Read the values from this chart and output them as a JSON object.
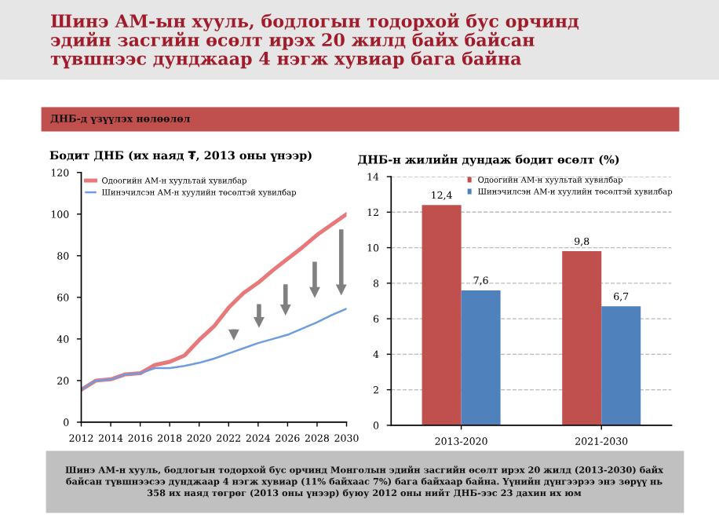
{
  "chart_data": [
    {
      "type": "line",
      "title": "Бодит ДНБ (их наяд ₮, 2013 оны үнээр)",
      "annotations": [
        "Шинэ АМ-ын хууль, бодлогын тодорхой бус орчинд\nэдийн засгийн өсөлт ирэх 20 жилд байх байсан\nтүвшнээс дунджаар 4 нэгж хувиар бага байна",
        "ДНБ-д үзүүлэх нөлөөлөл",
        "Шинэ АМ-н хууль, бодлогын тодорхой бус орчинд Монголын эдийн засгийн өсөлт ирэх 20 жилд (2013-2030) байх\nбайсан түвшнээсээ дунджаар 4 нэгж хувиар (11% байхаас 7%) бага байхаар байна. Үүнийн дүнгээрээ энэ зөрүү нь\n358 их наяд төгрөг (2013 оны үнээр) буюу 2012 оны нийт ДНБ-ээс 23 дахин их юм"
      ],
      "x": [
        2012,
        2013,
        2014,
        2015,
        2016,
        2017,
        2018,
        2019,
        2020,
        2021,
        2022,
        2023,
        2024,
        2025,
        2026,
        2027,
        2028,
        2029,
        2030
      ],
      "series": [
        {
          "name": "Одоогийн АМ-н хуультай хувилбар",
          "color": "#e8787a",
          "values": [
            15.6,
            20,
            20.6,
            23,
            23.5,
            27.5,
            29,
            32,
            39.5,
            46,
            55,
            62,
            67,
            73,
            78.5,
            84,
            90,
            95,
            100
          ]
        },
        {
          "name": "Шинэчилсэн АМ-н хуулийн төсөлтэй хувилбар",
          "color": "#6f9be0",
          "values": [
            15.6,
            20,
            20.5,
            23,
            23.5,
            26,
            26,
            27,
            28.5,
            30.5,
            33,
            35.5,
            38,
            40,
            42,
            45,
            48,
            51.5,
            54.5
          ]
        }
      ],
      "xlim": [
        2012,
        2030
      ],
      "xticks": [
        2012,
        2014,
        2016,
        2018,
        2020,
        2022,
        2024,
        2026,
        2028,
        2030
      ],
      "ylim": [
        0,
        120
      ],
      "yticks": [
        0,
        20,
        40,
        60,
        80,
        100,
        120
      ],
      "grid": false,
      "legend": "top left",
      "line_style": "solid",
      "marker": "none"
    },
    {
      "type": "bar",
      "title": "ДНБ-н жилийн дундаж бодит өсөлт (%)",
      "categories": [
        "2013-2020",
        "2021-2030"
      ],
      "series": [
        {
          "name": "Одоогийн АМ-н хуультай хувилбар",
          "color": "#c0504d",
          "values": [
            12.4,
            9.8
          ],
          "value_labels": [
            "12,4",
            "9,8"
          ]
        },
        {
          "name": "Шинэчилсэн АМ-н хуулийн төсөлтэй хувилбар",
          "color": "#4f81bd",
          "values": [
            7.6,
            6.7
          ],
          "value_labels": [
            "7,6",
            "6,7"
          ]
        }
      ],
      "ylim": [
        0,
        14
      ],
      "yticks": [
        0,
        2,
        4,
        6,
        8,
        10,
        12,
        14
      ],
      "grid": "y",
      "legend": "top right"
    }
  ]
}
